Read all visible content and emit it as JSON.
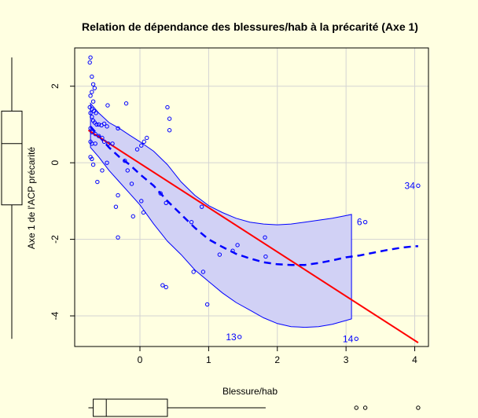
{
  "chart_data": {
    "type": "scatter",
    "title": "Relation de dépendance des blessures/hab à la précarité (Axe 1)",
    "xlabel": "Blessure/hab",
    "ylabel": "Axe 1 de l'ACP précarité",
    "xlim": [
      -0.95,
      4.2
    ],
    "ylim": [
      -4.8,
      3.0
    ],
    "x_ticks": [
      0,
      1,
      2,
      3,
      4
    ],
    "y_ticks": [
      -4,
      -2,
      0,
      2
    ],
    "grid": true,
    "colors": {
      "points": "#0000ff",
      "regression": "#ff0000",
      "smooth": "#0000ff",
      "band_fill": "#d1d1f5",
      "background": "#ffffe1"
    },
    "points": [
      [
        -0.72,
        2.75
      ],
      [
        -0.73,
        2.62
      ],
      [
        -0.7,
        2.25
      ],
      [
        -0.68,
        2.05
      ],
      [
        -0.66,
        1.95
      ],
      [
        -0.7,
        1.85
      ],
      [
        -0.72,
        1.75
      ],
      [
        -0.68,
        1.6
      ],
      [
        -0.73,
        1.45
      ],
      [
        -0.7,
        1.4
      ],
      [
        -0.67,
        1.35
      ],
      [
        -0.64,
        1.3
      ],
      [
        -0.72,
        1.3
      ],
      [
        -0.7,
        1.2
      ],
      [
        -0.68,
        1.1
      ],
      [
        -0.66,
        1.05
      ],
      [
        -0.63,
        1.0
      ],
      [
        -0.6,
        1.0
      ],
      [
        -0.56,
        0.98
      ],
      [
        -0.52,
        1.02
      ],
      [
        -0.48,
        0.95
      ],
      [
        -0.72,
        0.9
      ],
      [
        -0.7,
        0.8
      ],
      [
        -0.65,
        0.75
      ],
      [
        -0.6,
        0.7
      ],
      [
        -0.55,
        0.65
      ],
      [
        -0.72,
        0.55
      ],
      [
        -0.7,
        0.5
      ],
      [
        -0.65,
        0.5
      ],
      [
        -0.52,
        0.55
      ],
      [
        -0.46,
        0.5
      ],
      [
        -0.4,
        0.5
      ],
      [
        -0.72,
        0.15
      ],
      [
        -0.7,
        0.1
      ],
      [
        -0.68,
        -0.05
      ],
      [
        -0.62,
        -0.5
      ],
      [
        -0.55,
        -0.2
      ],
      [
        -0.48,
        0.0
      ],
      [
        -0.47,
        1.5
      ],
      [
        -0.2,
        1.55
      ],
      [
        -0.32,
        0.9
      ],
      [
        -0.22,
        0.05
      ],
      [
        -0.18,
        -0.2
      ],
      [
        -0.35,
        -1.15
      ],
      [
        -0.32,
        -0.85
      ],
      [
        -0.12,
        -0.55
      ],
      [
        -0.1,
        -1.4
      ],
      [
        -0.04,
        0.35
      ],
      [
        0.02,
        0.45
      ],
      [
        0.06,
        0.55
      ],
      [
        0.1,
        0.65
      ],
      [
        0.02,
        -1.0
      ],
      [
        0.05,
        -1.3
      ],
      [
        -0.32,
        -1.95
      ],
      [
        0.4,
        1.45
      ],
      [
        0.43,
        1.15
      ],
      [
        0.43,
        0.85
      ],
      [
        0.3,
        -0.8
      ],
      [
        0.38,
        -1.05
      ],
      [
        0.33,
        -3.2
      ],
      [
        0.38,
        -3.25
      ],
      [
        0.75,
        -1.55
      ],
      [
        0.9,
        -1.15
      ],
      [
        0.78,
        -2.85
      ],
      [
        0.92,
        -2.85
      ],
      [
        0.98,
        -3.7
      ],
      [
        1.16,
        -2.4
      ],
      [
        1.35,
        -2.3
      ],
      [
        1.42,
        -2.15
      ],
      [
        1.82,
        -1.95
      ],
      [
        1.83,
        -2.45
      ],
      [
        3.28,
        -1.55
      ],
      [
        4.05,
        -0.6
      ],
      [
        1.45,
        -4.55
      ],
      [
        3.15,
        -4.6
      ]
    ],
    "point_labels": [
      {
        "label": "34",
        "x": 4.05,
        "y": -0.6
      },
      {
        "label": "6",
        "x": 3.28,
        "y": -1.55
      },
      {
        "label": "13",
        "x": 1.45,
        "y": -4.55
      },
      {
        "label": "14",
        "x": 3.15,
        "y": -4.6
      }
    ],
    "regression_line": {
      "x": [
        -0.75,
        4.05
      ],
      "y": [
        0.85,
        -4.7
      ]
    },
    "smooth_line": {
      "x": [
        -0.72,
        -0.6,
        -0.45,
        -0.3,
        -0.15,
        0.0,
        0.2,
        0.4,
        0.6,
        0.8,
        1.0,
        1.2,
        1.4,
        1.6,
        1.8,
        2.0,
        2.2,
        2.4,
        2.6,
        2.8,
        3.0,
        3.2,
        3.4,
        3.6,
        3.8,
        4.0,
        4.05
      ],
      "y": [
        0.95,
        0.7,
        0.4,
        0.15,
        -0.05,
        -0.3,
        -0.6,
        -1.0,
        -1.35,
        -1.7,
        -2.0,
        -2.2,
        -2.38,
        -2.5,
        -2.6,
        -2.65,
        -2.67,
        -2.67,
        -2.62,
        -2.55,
        -2.47,
        -2.42,
        -2.35,
        -2.28,
        -2.22,
        -2.18,
        -2.18
      ]
    },
    "confidence_band": {
      "x": [
        -0.72,
        -0.6,
        -0.45,
        -0.3,
        -0.15,
        0.0,
        0.2,
        0.4,
        0.6,
        0.8,
        1.0,
        1.2,
        1.4,
        1.6,
        1.8,
        2.0,
        2.2,
        2.4,
        2.6,
        2.8,
        3.0,
        3.08
      ],
      "upper": [
        1.55,
        1.3,
        1.05,
        0.9,
        0.72,
        0.55,
        0.3,
        -0.05,
        -0.5,
        -0.85,
        -1.12,
        -1.3,
        -1.45,
        -1.55,
        -1.6,
        -1.62,
        -1.6,
        -1.55,
        -1.5,
        -1.45,
        -1.38,
        -1.35
      ],
      "lower": [
        0.4,
        0.15,
        -0.2,
        -0.5,
        -0.8,
        -1.1,
        -1.6,
        -2.05,
        -2.4,
        -2.8,
        -3.1,
        -3.4,
        -3.65,
        -3.85,
        -4.05,
        -4.2,
        -4.28,
        -4.3,
        -4.28,
        -4.22,
        -4.12,
        -4.08
      ]
    },
    "x_boxplot": {
      "whisker_low": -0.75,
      "q1": -0.68,
      "median": -0.49,
      "q3": 0.4,
      "whisker_high": 1.83,
      "outliers": [
        3.15,
        3.28,
        4.05
      ]
    },
    "y_boxplot": {
      "whisker_low": -4.6,
      "q1": -1.1,
      "median": 0.5,
      "q3": 1.35,
      "whisker_high": 2.75
    }
  }
}
